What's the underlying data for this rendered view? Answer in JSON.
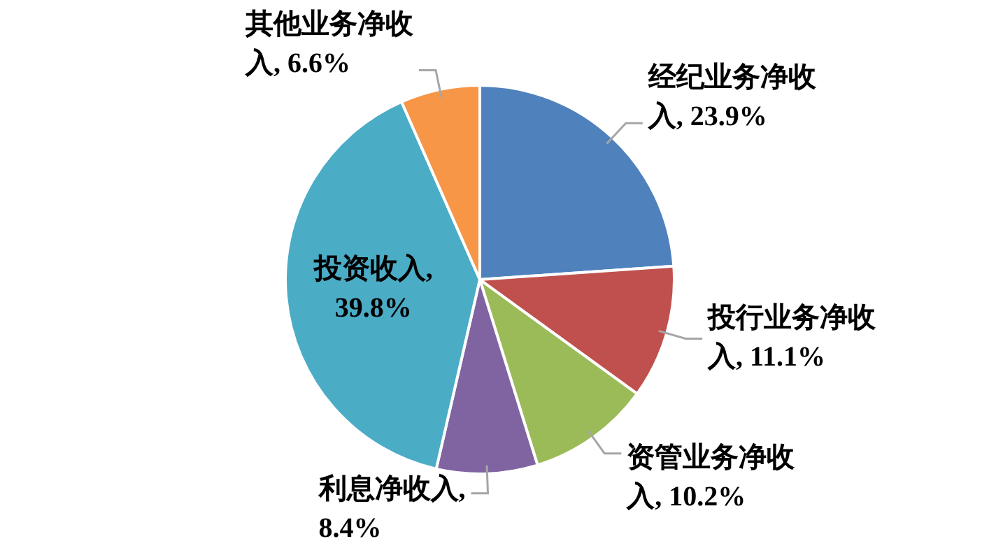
{
  "chart_data": {
    "type": "pie",
    "categories": [
      "经纪业务净收入, 23.9%",
      "投行业务净收入, 11.1%",
      "资管业务净收入, 10.2%",
      "利息净收入, 8.4%",
      "投资收入, 39.8%",
      "其他业务净收入, 6.6%"
    ],
    "values": [
      23.9,
      11.1,
      10.2,
      8.4,
      39.8,
      6.6
    ],
    "colors": [
      "#4f81bd",
      "#c0504d",
      "#9bbb59",
      "#8064a2",
      "#4bacc6",
      "#f79646"
    ],
    "legend": false
  }
}
